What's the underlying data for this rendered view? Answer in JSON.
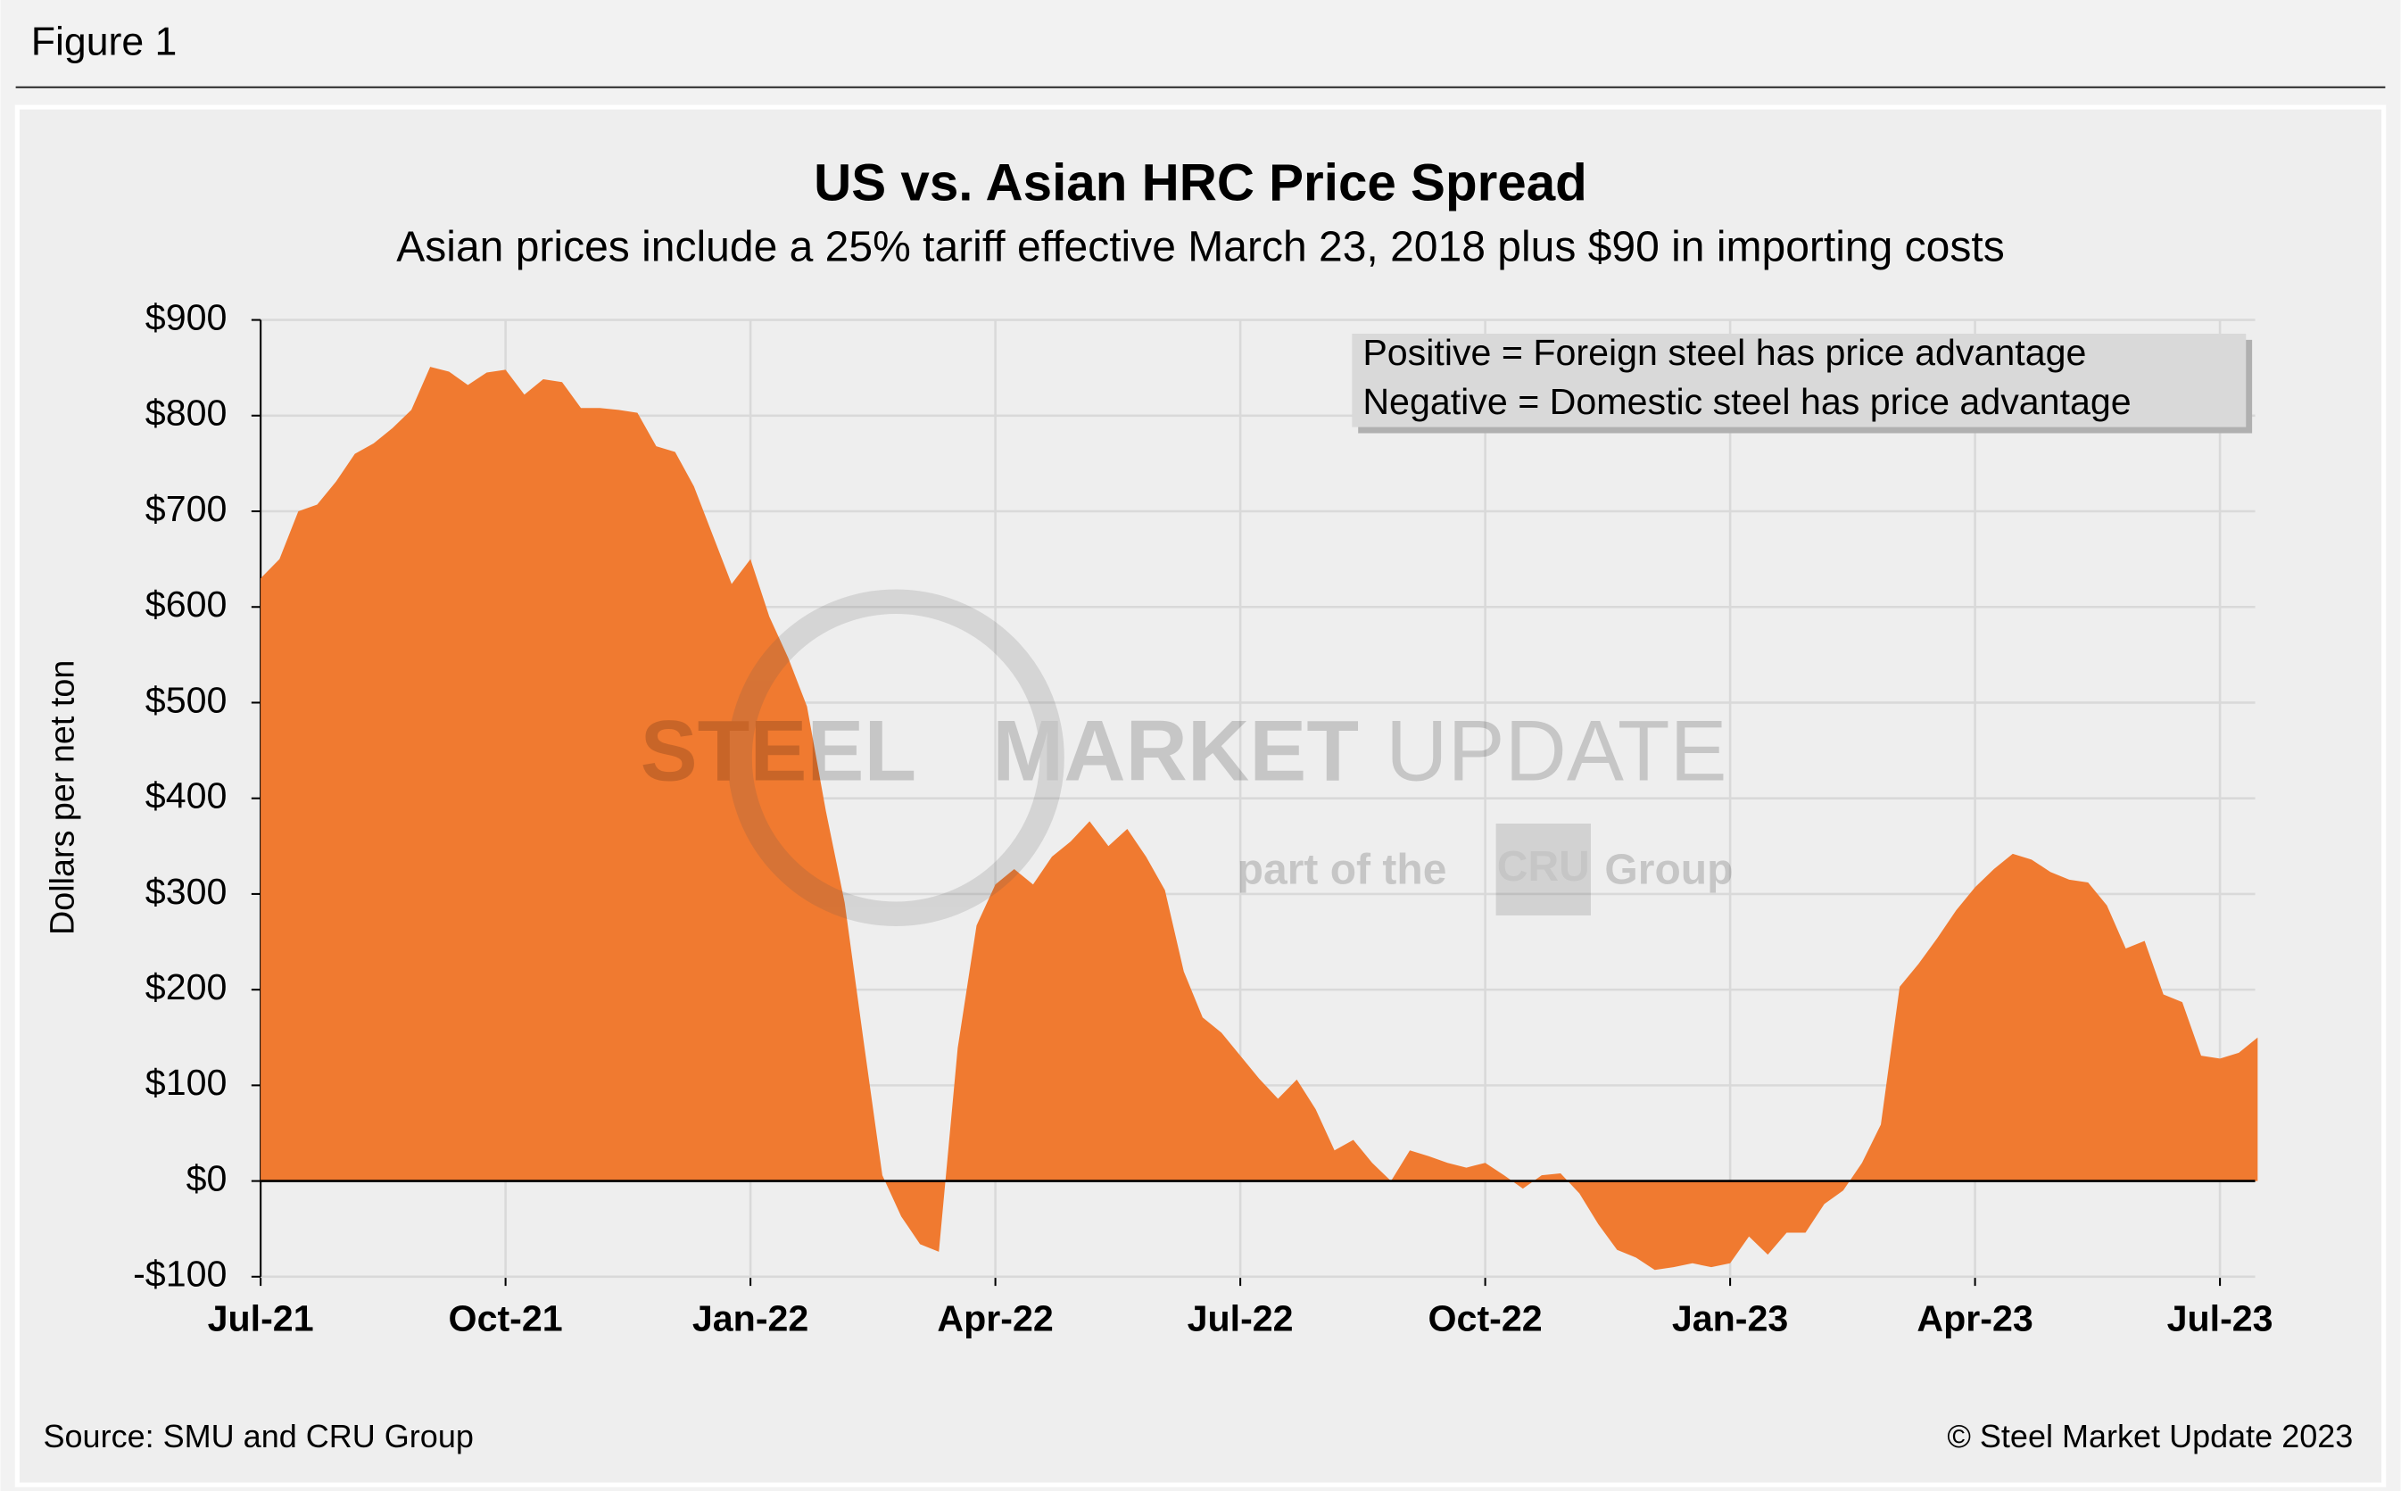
{
  "figure_label": "Figure 1",
  "chart_data": {
    "type": "area",
    "title": "US vs. Asian HRC Price Spread",
    "subtitle": "Asian prices include a 25% tariff effective March 23, 2018 plus $90 in importing costs",
    "y_label": "Dollars per net ton",
    "annotation": [
      "Positive = Foreign steel has price advantage",
      "Negative = Domestic steel has price advantage"
    ],
    "watermark": [
      "STEEL",
      "MARKET",
      "UPDATE",
      "part of the",
      "CRU",
      "Group"
    ],
    "source": "Source: SMU and CRU Group",
    "copyright": "© Steel Market Update 2023",
    "color": "#f07a30",
    "grid": true,
    "categories": [
      "Jul-21",
      null,
      null,
      null,
      null,
      null,
      null,
      null,
      null,
      null,
      null,
      null,
      null,
      "Oct-21",
      null,
      null,
      null,
      null,
      null,
      null,
      null,
      null,
      null,
      null,
      null,
      null,
      "Jan-22",
      null,
      null,
      null,
      null,
      null,
      null,
      null,
      null,
      null,
      null,
      null,
      null,
      "Apr-22",
      null,
      null,
      null,
      null,
      null,
      null,
      null,
      null,
      null,
      null,
      null,
      null,
      "Jul-22",
      null,
      null,
      null,
      null,
      null,
      null,
      null,
      null,
      null,
      null,
      null,
      null,
      "Oct-22",
      null,
      null,
      null,
      null,
      null,
      null,
      null,
      null,
      null,
      null,
      null,
      null,
      "Jan-23",
      null,
      null,
      null,
      null,
      null,
      null,
      null,
      null,
      null,
      null,
      null,
      null,
      "Apr-23",
      null,
      null,
      null,
      null,
      null,
      null,
      null,
      null,
      null,
      null,
      null,
      null,
      "Jul-23",
      null,
      null
    ],
    "values": [
      630,
      650,
      700,
      707,
      731,
      760,
      771,
      787,
      806,
      851,
      846,
      832,
      845,
      848,
      822,
      838,
      835,
      808,
      808,
      806,
      803,
      768,
      762,
      726,
      675,
      624,
      650,
      590,
      547,
      496,
      387,
      291,
      147,
      6,
      -37,
      -66,
      -74,
      139,
      267,
      310,
      326,
      310,
      339,
      355,
      376,
      350,
      368,
      339,
      304,
      219,
      171,
      155,
      131,
      107,
      86,
      106,
      75,
      32,
      43,
      19,
      0,
      32,
      26,
      19,
      14,
      19,
      6,
      -8,
      6,
      8,
      -13,
      -45,
      -72,
      -80,
      -93,
      -90,
      -86,
      -90,
      -86,
      -58,
      -77,
      -54,
      -54,
      -24,
      -10,
      19,
      59,
      203,
      227,
      254,
      283,
      307,
      326,
      342,
      336,
      323,
      315,
      312,
      288,
      243,
      251,
      195,
      187,
      131,
      128,
      134,
      150
    ],
    "ylim": [
      -100,
      900
    ],
    "yticks": [
      {
        "value": -100,
        "label": "-$100"
      },
      {
        "value": 0,
        "label": "$0"
      },
      {
        "value": 100,
        "label": "$100"
      },
      {
        "value": 200,
        "label": "$200"
      },
      {
        "value": 300,
        "label": "$300"
      },
      {
        "value": 400,
        "label": "$400"
      },
      {
        "value": 500,
        "label": "$500"
      },
      {
        "value": 600,
        "label": "$600"
      },
      {
        "value": 700,
        "label": "$700"
      },
      {
        "value": 800,
        "label": "$800"
      },
      {
        "value": 900,
        "label": "$900"
      }
    ]
  }
}
